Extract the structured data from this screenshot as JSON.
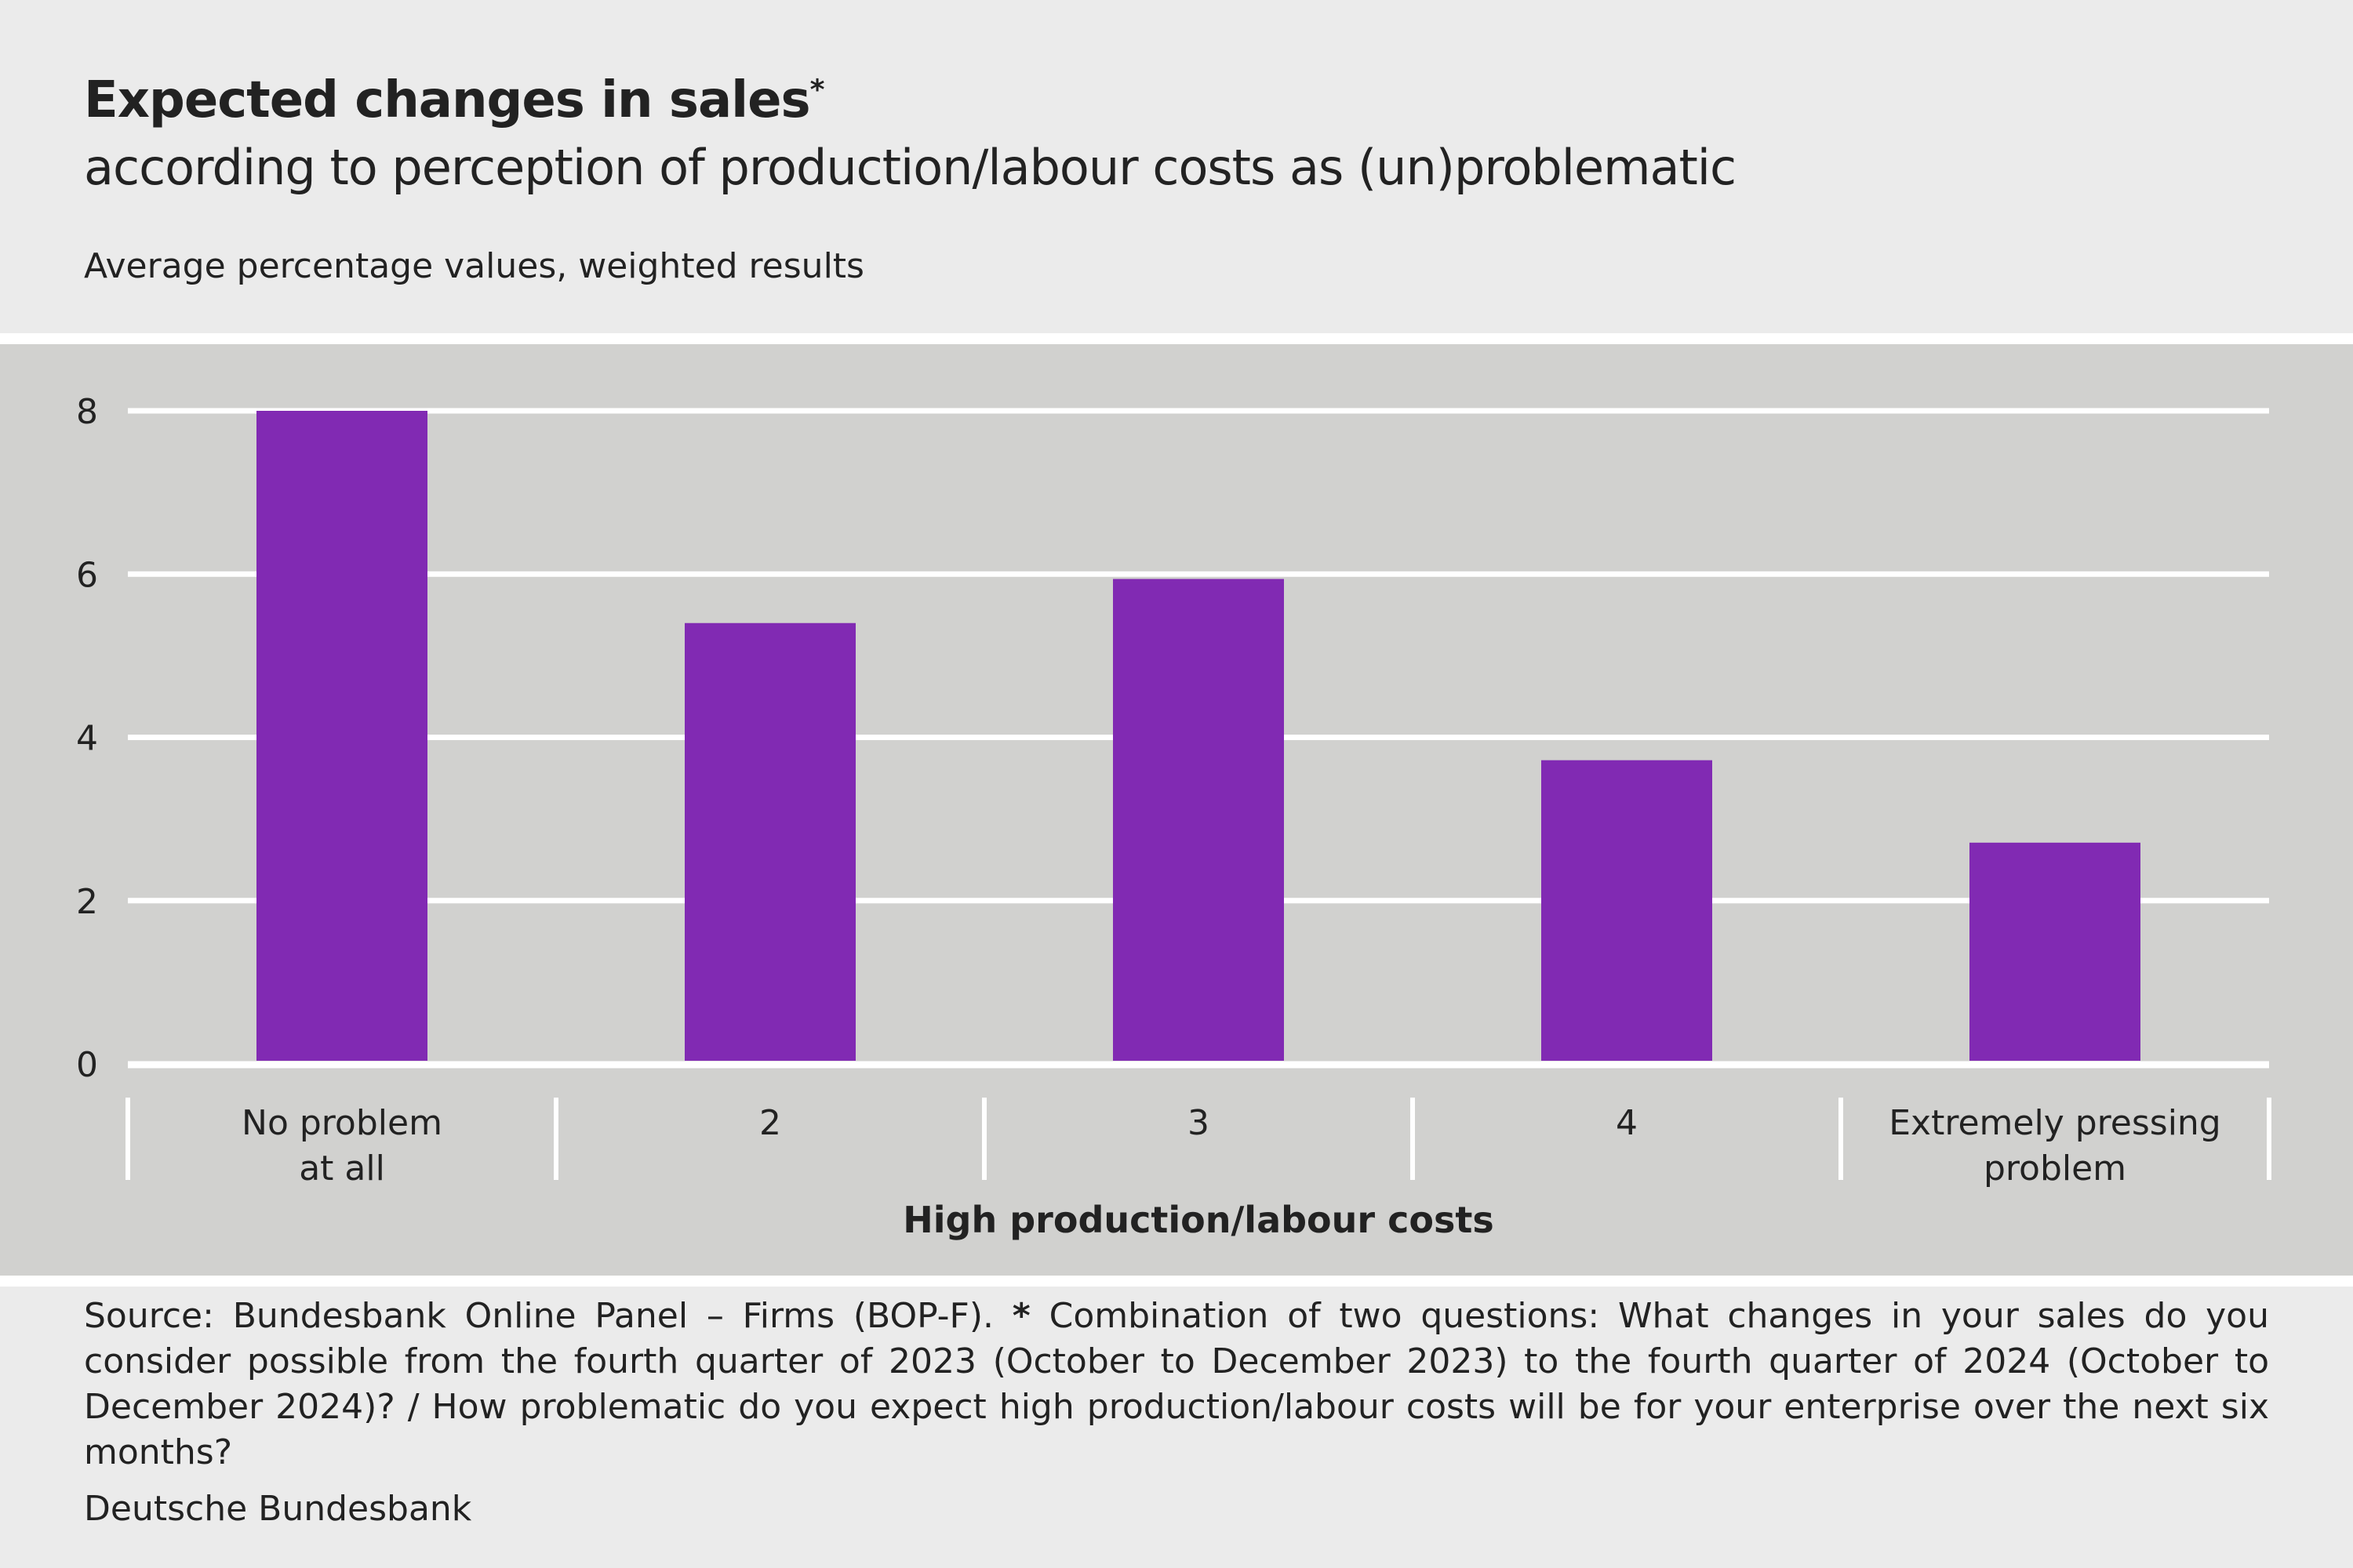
{
  "title": "Expected changes in sales",
  "title_marker": "*",
  "subtitle": "according to perception of production/labour costs as (un)problematic",
  "unit_label": "Average percentage values, weighted results",
  "source_prefix": "Source: Bundesbank Online Panel – Firms (BOP-F).",
  "source_marker": "*",
  "source_note": "Combination of two questions: What changes in your sales do you consider possible from the fourth quarter of 2023 (October to December 2023) to the fourth quarter of 2024 (October to December 2024)? / How problematic do you expect high production/labour costs will be for your enterprise over the next six months?",
  "publisher": "Deutsche Bundesbank",
  "chart_data": {
    "type": "bar",
    "categories": [
      "No problem at all",
      "2",
      "3",
      "4",
      "Extremely pressing problem"
    ],
    "category_lines": [
      [
        "No problem",
        "at all"
      ],
      [
        "2"
      ],
      [
        "3"
      ],
      [
        "4"
      ],
      [
        "Extremely pressing",
        "problem"
      ]
    ],
    "values": [
      8.0,
      5.4,
      5.94,
      3.72,
      2.71
    ],
    "xlabel": "High production/labour costs",
    "ylabel": "",
    "ylim": [
      0,
      8
    ],
    "yticks": [
      0,
      2,
      4,
      6,
      8
    ],
    "grid": true,
    "colors": {
      "bar": "#812ab3",
      "grid": "#ffffff",
      "plot_bg": "#d1d1cf",
      "page_bg": "#ebebeb"
    }
  }
}
